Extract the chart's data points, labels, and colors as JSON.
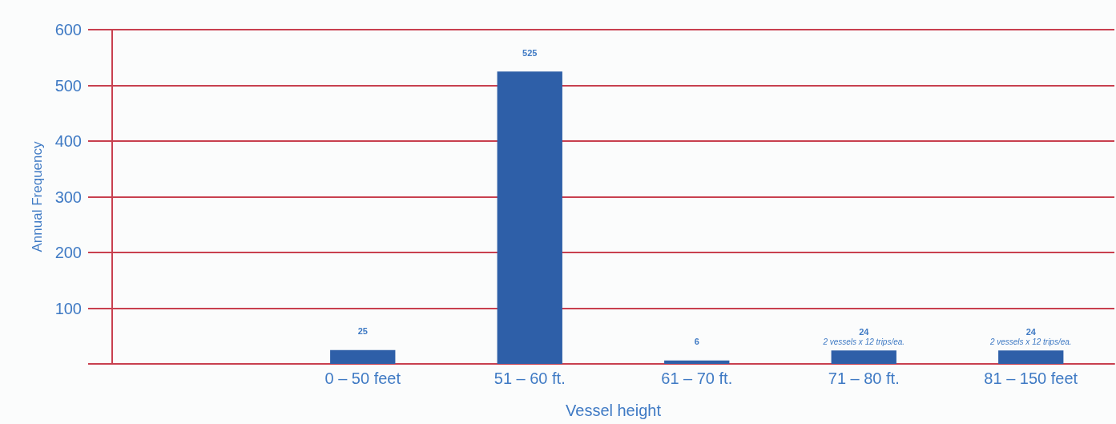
{
  "chart_data": {
    "type": "bar",
    "xlabel": "Vessel height",
    "ylabel": "Annual Frequency",
    "categories": [
      null,
      "0 – 50 feet",
      "51 – 60 ft.",
      "61 – 70 ft.",
      "71 – 80 ft.",
      "81 – 150 feet"
    ],
    "values": [
      null,
      25,
      525,
      6,
      24,
      24
    ],
    "color": "#2e5fa8",
    "data_labels": true,
    "ylim": [
      0,
      600
    ],
    "yticks": [
      {
        "value": 0,
        "label": null
      },
      100,
      200,
      300,
      400,
      500,
      600
    ],
    "grid": "y",
    "annotations": [
      {
        "text": "2 vessels x 12 trips/ea.",
        "x": "71 – 80 ft.",
        "y": 24
      },
      {
        "text": "2 vessels x 12 trips/ea.",
        "x": "81 – 150 feet",
        "y": 24
      }
    ]
  }
}
